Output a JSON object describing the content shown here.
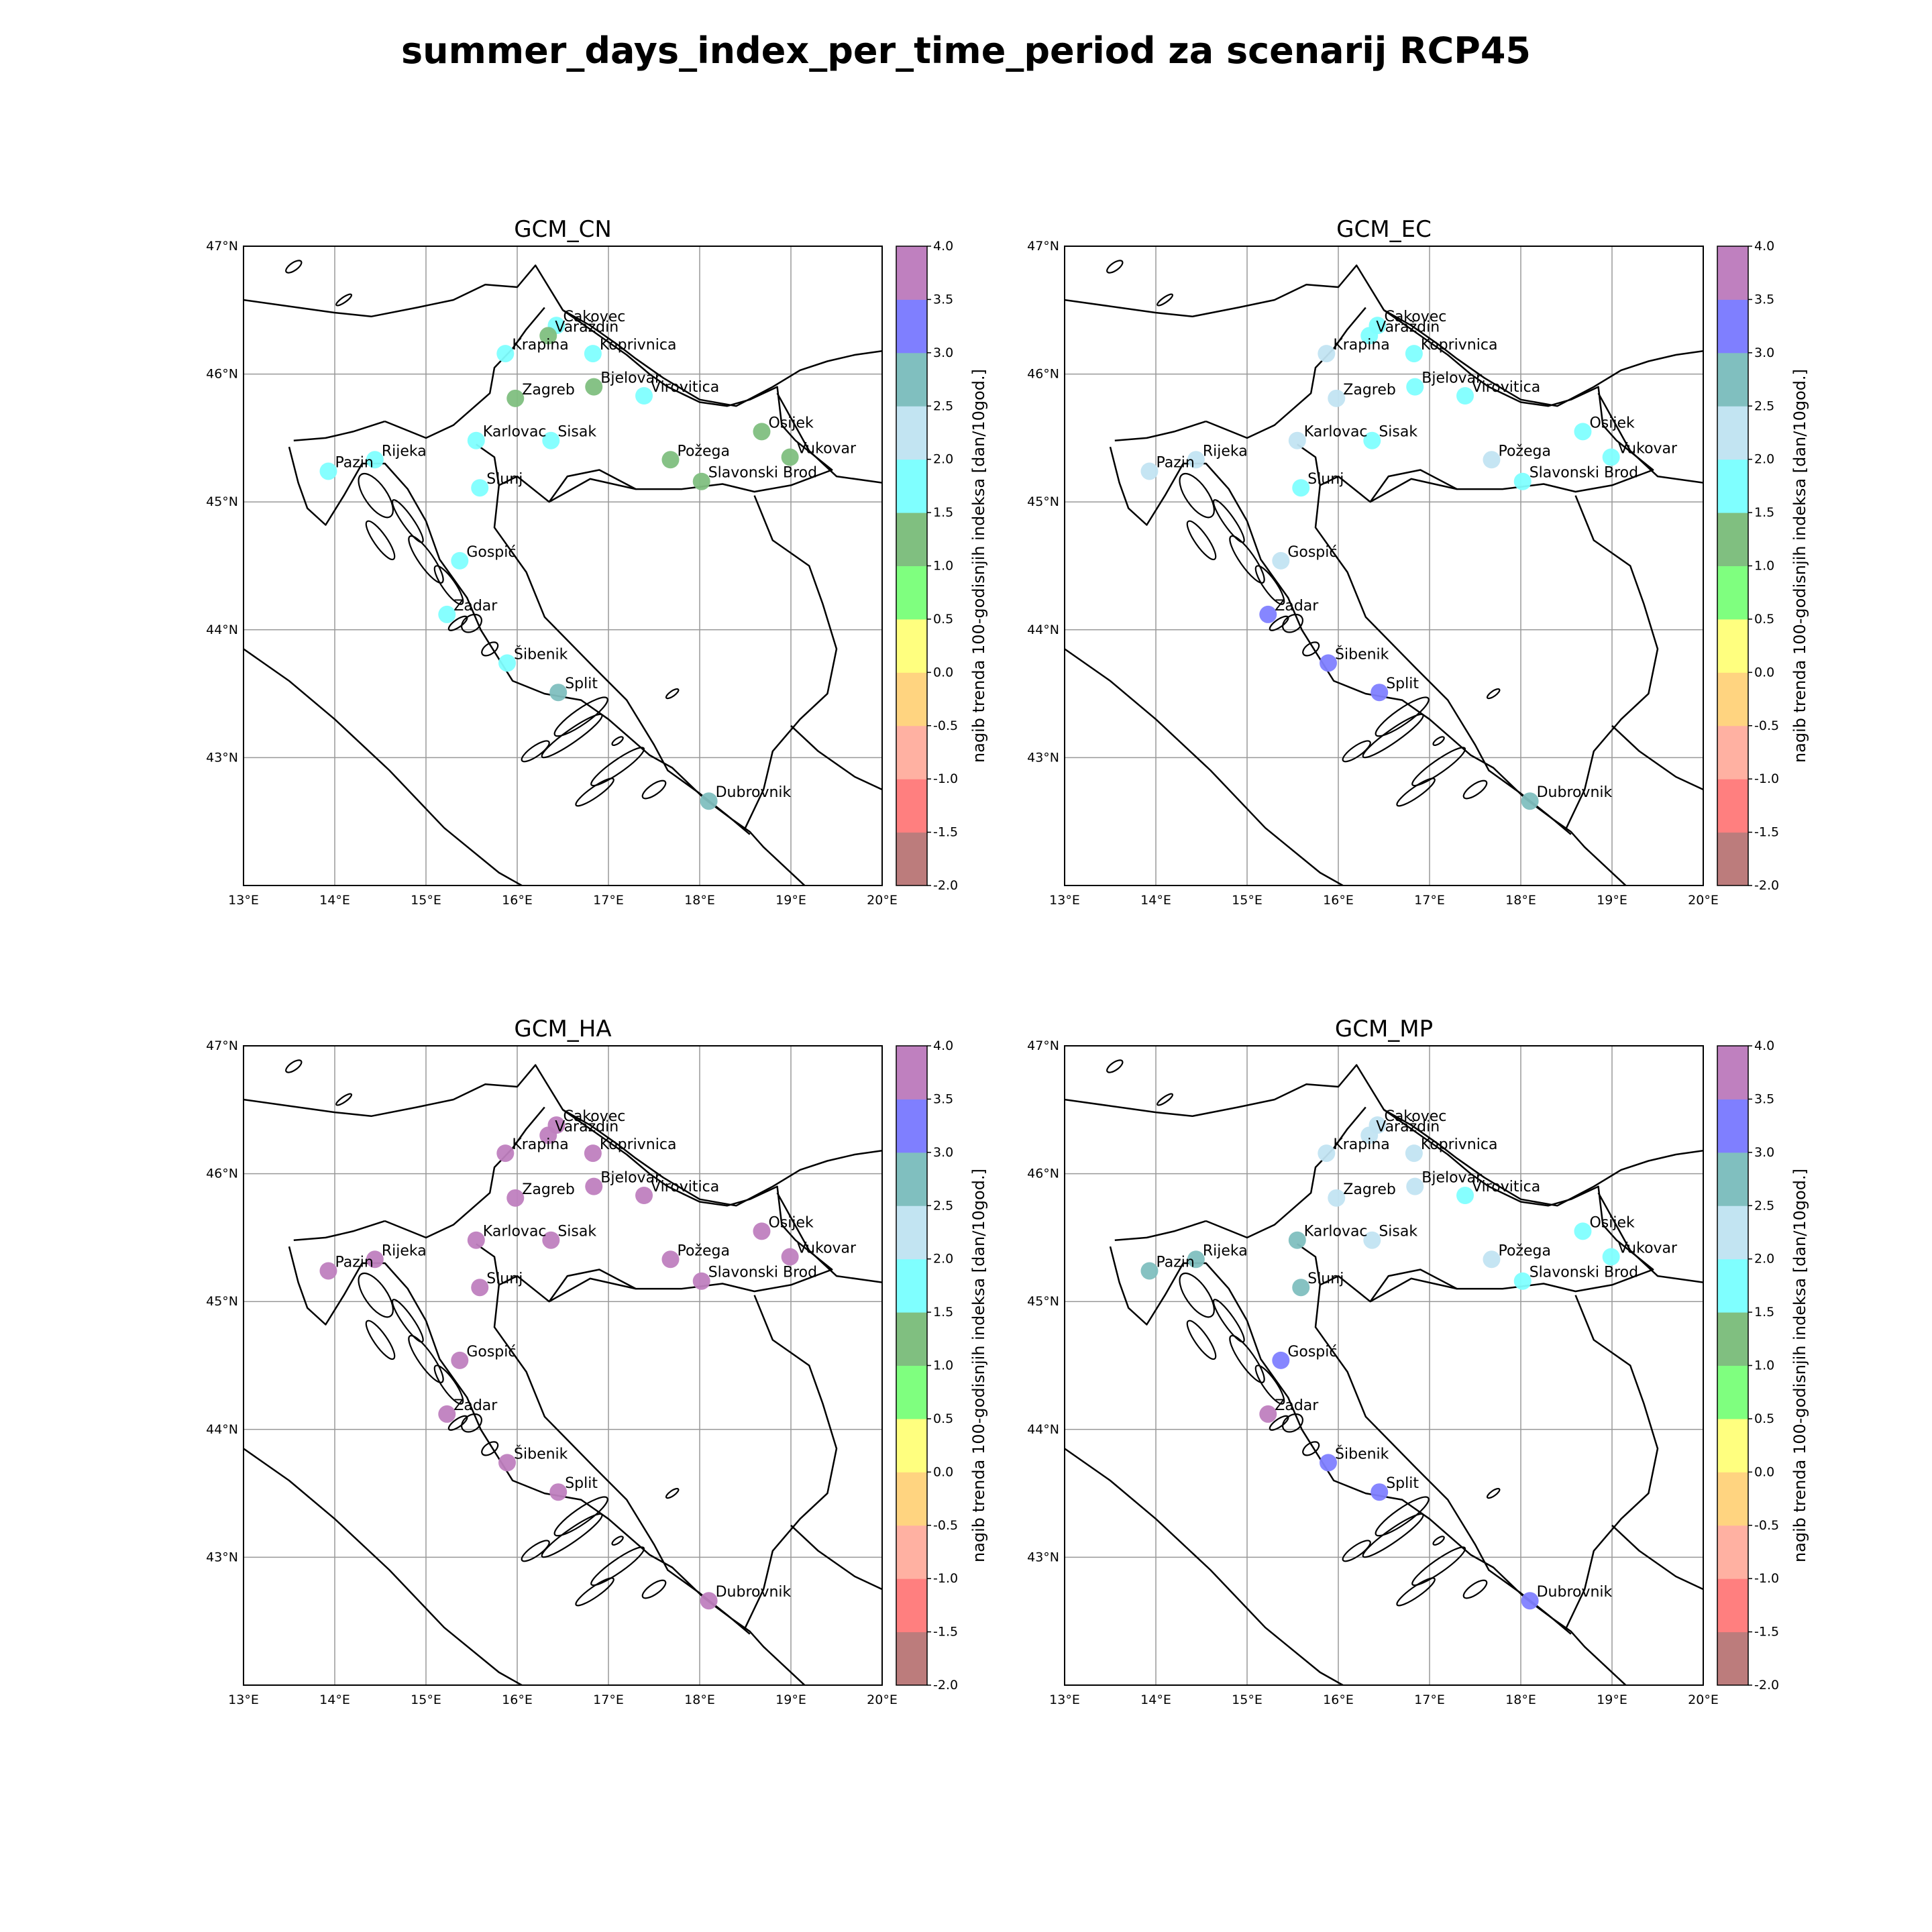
{
  "title": "summer_days_index_per_time_period za scenarij RCP45",
  "axes": {
    "lon_ticks": [
      "13°E",
      "14°E",
      "15°E",
      "16°E",
      "17°E",
      "18°E",
      "19°E",
      "20°E"
    ],
    "lat_ticks": [
      "43°N",
      "44°N",
      "45°N",
      "46°N",
      "47°N"
    ],
    "lon_range": [
      13,
      20
    ],
    "lat_range": [
      42,
      47
    ],
    "grid": true
  },
  "colorbar": {
    "label": "nagib trenda 100-godisnjih indeksa [dan/10god.]",
    "ticks": [
      "-2.0",
      "-1.5",
      "-1.0",
      "-0.5",
      "0.0",
      "0.5",
      "1.0",
      "1.5",
      "2.0",
      "2.5",
      "3.0",
      "3.5",
      "4.0"
    ],
    "bins": [
      {
        "from": -2.0,
        "to": -1.5,
        "color": "#bc7c7c"
      },
      {
        "from": -1.5,
        "to": -1.0,
        "color": "#ff7f7f"
      },
      {
        "from": -1.0,
        "to": -0.5,
        "color": "#ffb1a2"
      },
      {
        "from": -0.5,
        "to": 0.0,
        "color": "#ffd480"
      },
      {
        "from": 0.0,
        "to": 0.5,
        "color": "#ffff7f"
      },
      {
        "from": 0.5,
        "to": 1.0,
        "color": "#7fff7f"
      },
      {
        "from": 1.0,
        "to": 1.5,
        "color": "#80bf80"
      },
      {
        "from": 1.5,
        "to": 2.0,
        "color": "#7fffff"
      },
      {
        "from": 2.0,
        "to": 2.5,
        "color": "#c2e4f2"
      },
      {
        "from": 2.5,
        "to": 3.0,
        "color": "#80bfbf"
      },
      {
        "from": 3.0,
        "to": 3.5,
        "color": "#7f7fff"
      },
      {
        "from": 3.5,
        "to": 4.0,
        "color": "#bf80bf"
      }
    ]
  },
  "stations": [
    {
      "name": "Cakovec",
      "lon": 16.43,
      "lat": 46.38
    },
    {
      "name": "Varaždin",
      "lon": 16.34,
      "lat": 46.3
    },
    {
      "name": "Krapina",
      "lon": 15.87,
      "lat": 46.16
    },
    {
      "name": "Koprivnica",
      "lon": 16.83,
      "lat": 46.16
    },
    {
      "name": "Bjelovar",
      "lon": 16.84,
      "lat": 45.9
    },
    {
      "name": "Zagreb",
      "lon": 15.98,
      "lat": 45.81
    },
    {
      "name": "Virovitica",
      "lon": 17.39,
      "lat": 45.83
    },
    {
      "name": "Osijek",
      "lon": 18.68,
      "lat": 45.55
    },
    {
      "name": "Karlovac",
      "lon": 15.55,
      "lat": 45.48
    },
    {
      "name": "Sisak",
      "lon": 16.37,
      "lat": 45.48
    },
    {
      "name": "Vukovar",
      "lon": 18.99,
      "lat": 45.35
    },
    {
      "name": "Rijeka",
      "lon": 14.44,
      "lat": 45.33
    },
    {
      "name": "Požega",
      "lon": 17.68,
      "lat": 45.33
    },
    {
      "name": "Pazin",
      "lon": 13.93,
      "lat": 45.24
    },
    {
      "name": "Slavonski Brod",
      "lon": 18.02,
      "lat": 45.16
    },
    {
      "name": "Slunj",
      "lon": 15.59,
      "lat": 45.11
    },
    {
      "name": "Gospić",
      "lon": 15.37,
      "lat": 44.54
    },
    {
      "name": "Zadar",
      "lon": 15.23,
      "lat": 44.12
    },
    {
      "name": "Šibenik",
      "lon": 15.89,
      "lat": 43.74
    },
    {
      "name": "Split",
      "lon": 16.45,
      "lat": 43.51
    },
    {
      "name": "Dubrovnik",
      "lon": 18.1,
      "lat": 42.66
    }
  ],
  "panels": [
    {
      "title": "GCM_CN",
      "values": {
        "Cakovec": 1.8,
        "Varaždin": 1.3,
        "Krapina": 1.8,
        "Koprivnica": 1.8,
        "Bjelovar": 1.3,
        "Zagreb": 1.3,
        "Virovitica": 1.8,
        "Osijek": 1.3,
        "Karlovac": 1.8,
        "Sisak": 1.8,
        "Vukovar": 1.3,
        "Rijeka": 1.8,
        "Požega": 1.3,
        "Pazin": 1.8,
        "Slavonski Brod": 1.3,
        "Slunj": 1.8,
        "Gospić": 1.8,
        "Zadar": 1.8,
        "Šibenik": 1.8,
        "Split": 2.8,
        "Dubrovnik": 2.8
      }
    },
    {
      "title": "GCM_EC",
      "values": {
        "Cakovec": 1.8,
        "Varaždin": 1.8,
        "Krapina": 2.3,
        "Koprivnica": 1.8,
        "Bjelovar": 1.8,
        "Zagreb": 2.3,
        "Virovitica": 1.8,
        "Osijek": 1.8,
        "Karlovac": 2.3,
        "Sisak": 1.8,
        "Vukovar": 1.8,
        "Rijeka": 2.3,
        "Požega": 2.3,
        "Pazin": 2.3,
        "Slavonski Brod": 1.8,
        "Slunj": 1.8,
        "Gospić": 2.3,
        "Zadar": 3.3,
        "Šibenik": 3.3,
        "Split": 3.3,
        "Dubrovnik": 2.8
      }
    },
    {
      "title": "GCM_HA",
      "values": {
        "Cakovec": 3.8,
        "Varaždin": 3.8,
        "Krapina": 3.8,
        "Koprivnica": 3.8,
        "Bjelovar": 3.8,
        "Zagreb": 3.8,
        "Virovitica": 3.8,
        "Osijek": 3.8,
        "Karlovac": 3.8,
        "Sisak": 3.8,
        "Vukovar": 3.8,
        "Rijeka": 3.8,
        "Požega": 3.8,
        "Pazin": 3.8,
        "Slavonski Brod": 3.8,
        "Slunj": 3.8,
        "Gospić": 3.8,
        "Zadar": 3.8,
        "Šibenik": 3.8,
        "Split": 3.8,
        "Dubrovnik": 3.8
      }
    },
    {
      "title": "GCM_MP",
      "values": {
        "Cakovec": 2.3,
        "Varaždin": 2.3,
        "Krapina": 2.3,
        "Koprivnica": 2.3,
        "Bjelovar": 2.3,
        "Zagreb": 2.3,
        "Virovitica": 1.8,
        "Osijek": 1.8,
        "Karlovac": 2.8,
        "Sisak": 2.3,
        "Vukovar": 1.8,
        "Rijeka": 2.8,
        "Požega": 2.3,
        "Pazin": 2.8,
        "Slavonski Brod": 1.8,
        "Slunj": 2.8,
        "Gospić": 3.3,
        "Zadar": 3.8,
        "Šibenik": 3.3,
        "Split": 3.3,
        "Dubrovnik": 3.3
      }
    }
  ]
}
